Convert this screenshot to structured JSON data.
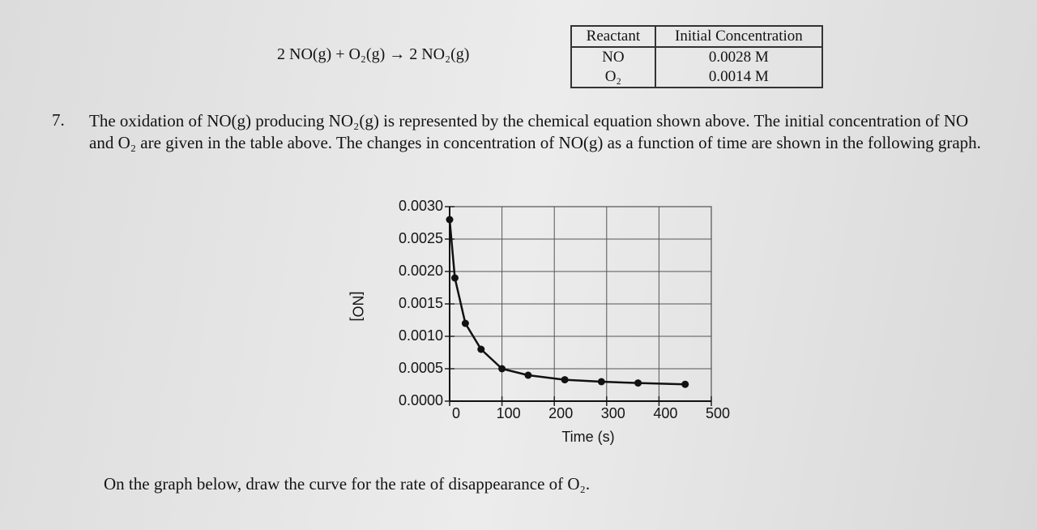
{
  "equation": "2 NO(g) + O₂(g) → 2 NO₂(g)",
  "table": {
    "header": [
      "Reactant",
      "Initial Concentration"
    ],
    "rows": [
      [
        "NO",
        "0.0028 M"
      ],
      [
        "O₂",
        "0.0014 M"
      ]
    ]
  },
  "question": {
    "number": "7.",
    "text": "The oxidation of NO(g) producing NO₂(g) is represented by the chemical equation shown above. The initial concentration of NO and O₂ are given in the table above. The changes in concentration of NO(g) as a function of time are shown in the following graph."
  },
  "chart_data": {
    "type": "line",
    "x_label": "Time (s)",
    "y_label": "[NO]",
    "x": [
      0,
      10,
      30,
      60,
      100,
      150,
      220,
      290,
      360,
      450
    ],
    "values": [
      0.0028,
      0.0019,
      0.0012,
      0.0008,
      0.0005,
      0.0004,
      0.00033,
      0.0003,
      0.00028,
      0.00026
    ],
    "color": "#111111",
    "markers": true,
    "grid": true,
    "xlim": [
      0,
      500
    ],
    "xticks": [
      0,
      100,
      200,
      300,
      400,
      500
    ],
    "ylim": [
      0,
      0.003
    ],
    "yticks": [
      {
        "value": 0,
        "label": "0.0000"
      },
      {
        "value": 0.0005,
        "label": "0.0005"
      },
      {
        "value": 0.001,
        "label": "0.0010"
      },
      {
        "value": 0.0015,
        "label": "0.0015"
      },
      {
        "value": 0.002,
        "label": "0.0020"
      },
      {
        "value": 0.0025,
        "label": "0.0025"
      },
      {
        "value": 0.003,
        "label": "0.0030"
      }
    ]
  },
  "instruction": "On the graph below, draw the curve for the rate of disappearance of O₂."
}
